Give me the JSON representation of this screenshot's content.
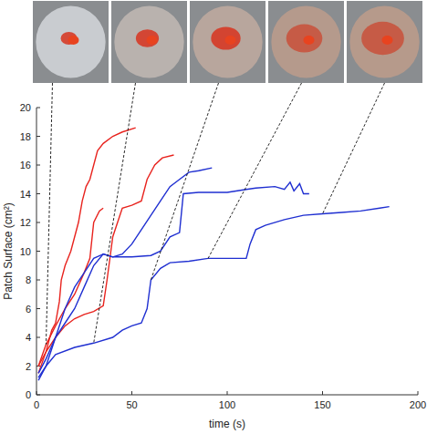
{
  "chart_data": {
    "type": "line",
    "x_label": "time (s)",
    "y_label": "Patch Surface (cm²)",
    "xlim": [
      0,
      200
    ],
    "xticks": [
      0,
      50,
      100,
      150,
      200
    ],
    "ylim": [
      0,
      20
    ],
    "yticks": [
      0,
      2,
      4,
      6,
      8,
      10,
      12,
      14,
      16,
      18,
      20
    ],
    "grid": false,
    "series": [
      {
        "color": "#e8231e",
        "x": [
          1,
          5,
          8,
          10,
          12,
          13,
          15,
          18,
          20,
          22,
          24,
          26,
          28,
          30,
          32,
          35,
          40,
          45,
          52
        ],
        "values": [
          2,
          3,
          4.5,
          5,
          6.5,
          8,
          9,
          10,
          11,
          12,
          13.5,
          14.5,
          15,
          16,
          17,
          17.5,
          18,
          18.3,
          18.6
        ]
      },
      {
        "color": "#e8231e",
        "x": [
          1,
          5,
          10,
          15,
          20,
          25,
          30,
          35,
          37,
          40,
          45,
          50,
          55,
          58,
          62,
          66,
          72
        ],
        "values": [
          1.5,
          3,
          4,
          4.8,
          5.3,
          5.6,
          5.8,
          6.2,
          8,
          11,
          13,
          13.2,
          13.5,
          15,
          16,
          16.5,
          16.7
        ]
      },
      {
        "color": "#e8231e",
        "x": [
          1,
          5,
          10,
          15,
          20,
          25,
          28,
          30,
          33,
          35
        ],
        "values": [
          2,
          3.5,
          4.8,
          6,
          7,
          8.5,
          9.5,
          12,
          12.8,
          13
        ]
      },
      {
        "color": "#1f2fd1",
        "x": [
          1,
          5,
          10,
          15,
          20,
          25,
          30,
          35,
          40,
          45,
          50,
          55,
          60,
          65,
          70,
          75,
          80,
          85,
          92
        ],
        "values": [
          1.5,
          2.5,
          4,
          5,
          6,
          7.5,
          9,
          9.8,
          9.6,
          9.8,
          10.5,
          11.5,
          12.5,
          13.5,
          14.5,
          15,
          15.5,
          15.6,
          15.8
        ]
      },
      {
        "color": "#1f2fd1",
        "x": [
          1,
          5,
          10,
          15,
          20,
          25,
          30,
          35,
          40,
          50,
          60,
          65,
          70,
          75,
          77,
          85,
          100,
          110,
          115,
          125,
          130,
          133,
          135,
          138,
          140,
          143
        ],
        "values": [
          1,
          2,
          4,
          6,
          7.5,
          8.5,
          9.5,
          9.8,
          9.6,
          9.6,
          9.7,
          10,
          11,
          11.3,
          14,
          14.1,
          14.1,
          14.3,
          14.4,
          14.5,
          14.3,
          14.8,
          14.2,
          14.7,
          14,
          14
        ]
      },
      {
        "color": "#1f2fd1",
        "x": [
          1,
          5,
          10,
          20,
          30,
          40,
          45,
          50,
          55,
          58,
          60,
          65,
          70,
          80,
          90,
          100,
          110,
          112,
          115,
          120,
          130,
          140,
          150,
          160,
          170,
          180,
          185
        ],
        "values": [
          1.2,
          2,
          2.8,
          3.3,
          3.6,
          4,
          4.5,
          4.8,
          5,
          6,
          8,
          8.8,
          9.2,
          9.3,
          9.5,
          9.5,
          9.5,
          10.5,
          11.5,
          11.8,
          12.2,
          12.5,
          12.6,
          12.7,
          12.8,
          13,
          13.1
        ]
      }
    ]
  }
}
